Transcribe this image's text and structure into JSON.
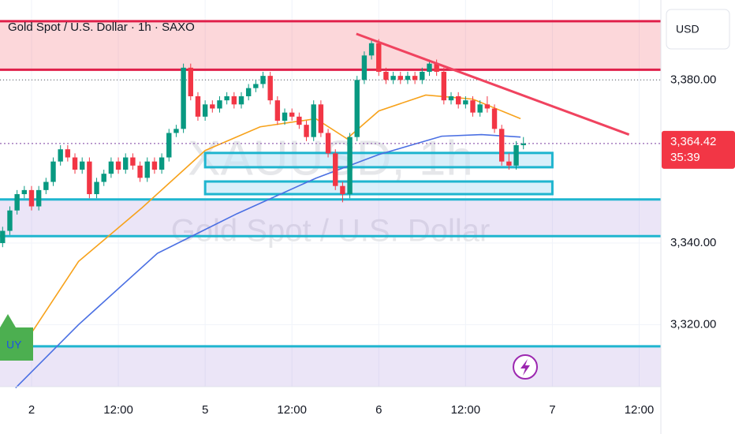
{
  "chart_data": {
    "type": "candlestick",
    "title": "Gold Spot / U.S. Dollar · 1h · SAXO",
    "currency": "USD",
    "watermark_symbol": "XAUUSD, 1h",
    "watermark_name": "Gold Spot / U.S. Dollar",
    "countdown": "35:39",
    "signal_label": "UY",
    "up_color": "#089981",
    "down_color": "#f23645",
    "grid": true,
    "xlim": [
      -4.36,
      87
    ],
    "ylim": [
      3304.8,
      3399.6
    ],
    "xticks": [
      {
        "value": 0,
        "label": "2"
      },
      {
        "value": 12,
        "label": "12:00"
      },
      {
        "value": 24,
        "label": "5"
      },
      {
        "value": 36,
        "label": "12:00"
      },
      {
        "value": 48,
        "label": "6"
      },
      {
        "value": 60,
        "label": "12:00"
      },
      {
        "value": 72,
        "label": "7"
      },
      {
        "value": 84,
        "label": "12:00"
      }
    ],
    "yticks": [
      {
        "value": 3380,
        "label": "3,380.00"
      },
      {
        "value": 3340,
        "label": "3,340.00"
      },
      {
        "value": 3320,
        "label": "3,320.00"
      }
    ],
    "x": [
      -4,
      -3,
      -2,
      -1,
      0,
      1,
      2,
      3,
      4,
      5,
      6,
      7,
      8,
      9,
      10,
      11,
      12,
      13,
      14,
      15,
      16,
      17,
      18,
      19,
      20,
      21,
      22,
      23,
      24,
      25,
      26,
      27,
      28,
      29,
      30,
      31,
      32,
      33,
      34,
      35,
      36,
      37,
      38,
      39,
      40,
      41,
      42,
      43,
      44,
      45,
      46,
      47,
      48,
      49,
      50,
      51,
      52,
      53,
      54,
      55,
      56,
      57,
      58,
      59,
      60,
      61,
      62,
      63,
      64,
      65,
      66,
      67,
      68
    ],
    "open": [
      3340,
      3343,
      3348,
      3352,
      3353,
      3349,
      3353,
      3355,
      3360,
      3363,
      3361,
      3358,
      3360,
      3352,
      3355,
      3357,
      3360,
      3358,
      3361,
      3359,
      3356,
      3360,
      3358,
      3361,
      3367,
      3368,
      3383,
      3376,
      3371,
      3374,
      3373,
      3375,
      3376,
      3374,
      3376,
      3378,
      3379,
      3381,
      3375,
      3370,
      3372,
      3371,
      3369,
      3366,
      3374,
      3367,
      3362,
      3354,
      3352,
      3366,
      3380,
      3386,
      3389,
      3382,
      3380,
      3381,
      3380,
      3381,
      3380,
      3382,
      3384,
      3382,
      3375,
      3376,
      3374,
      3375,
      3372,
      3374,
      3373,
      3368,
      3360,
      3359,
      3364
    ],
    "high": [
      3344,
      3349,
      3353,
      3354,
      3354,
      3354,
      3356,
      3361,
      3364,
      3364,
      3362,
      3361,
      3361,
      3356,
      3358,
      3361,
      3361,
      3362,
      3362,
      3360,
      3361,
      3361,
      3362,
      3368,
      3369,
      3384,
      3384,
      3377,
      3375,
      3375,
      3376,
      3377,
      3377,
      3377,
      3379,
      3380,
      3382,
      3382,
      3376,
      3373,
      3373,
      3372,
      3370,
      3375,
      3375,
      3368,
      3363,
      3355,
      3367,
      3381,
      3387,
      3390,
      3390,
      3383,
      3382,
      3382,
      3382,
      3382,
      3383,
      3385,
      3385,
      3383,
      3377,
      3377,
      3376,
      3376,
      3375,
      3376,
      3374,
      3369,
      3362,
      3365,
      3366
    ],
    "low": [
      3339,
      3342,
      3347,
      3351,
      3348,
      3348,
      3352,
      3354,
      3359,
      3360,
      3357,
      3357,
      3351,
      3351,
      3354,
      3356,
      3357,
      3357,
      3358,
      3355,
      3355,
      3357,
      3357,
      3360,
      3366,
      3367,
      3375,
      3370,
      3370,
      3372,
      3372,
      3374,
      3373,
      3373,
      3375,
      3377,
      3378,
      3374,
      3369,
      3369,
      3370,
      3368,
      3365,
      3365,
      3366,
      3361,
      3353,
      3350,
      3351,
      3365,
      3379,
      3385,
      3381,
      3379,
      3379,
      3379,
      3379,
      3379,
      3379,
      3381,
      3381,
      3374,
      3374,
      3373,
      3373,
      3371,
      3371,
      3372,
      3367,
      3359,
      3358,
      3358,
      3363
    ],
    "close": [
      3343,
      3348,
      3352,
      3353,
      3349,
      3353,
      3355,
      3360,
      3363,
      3361,
      3358,
      3360,
      3352,
      3355,
      3357,
      3360,
      3358,
      3361,
      3359,
      3356,
      3360,
      3358,
      3361,
      3367,
      3368,
      3383,
      3376,
      3371,
      3374,
      3373,
      3375,
      3376,
      3374,
      3376,
      3378,
      3379,
      3381,
      3375,
      3370,
      3372,
      3371,
      3369,
      3366,
      3374,
      3367,
      3362,
      3354,
      3352,
      3366,
      3380,
      3386,
      3389,
      3382,
      3380,
      3381,
      3380,
      3381,
      3380,
      3382,
      3384,
      3382,
      3375,
      3376,
      3374,
      3375,
      3372,
      3374,
      3373,
      3368,
      3360,
      3359,
      3364,
      3364.42
    ],
    "last_price": 3364.42,
    "last_price_label": "3,364.42",
    "moving_averages": [
      {
        "color": "#f7a21b",
        "x": [
          0,
          6.5,
          15.3,
          24,
          31.6,
          39.3,
          43.6,
          48,
          54.5,
          61,
          67.6
        ],
        "values": [
          3318,
          3335.5,
          3348.7,
          3362.7,
          3368.5,
          3370.5,
          3365.6,
          3372.4,
          3376.3,
          3375.3,
          3370.5
        ]
      },
      {
        "color": "#4a6fe3",
        "x": [
          -2.2,
          6.5,
          17.4,
          28.4,
          39.3,
          48,
          56.7,
          62.2,
          67.6
        ],
        "values": [
          3304.5,
          3320,
          3337.5,
          3347.2,
          3355.9,
          3361.7,
          3366.2,
          3366.6,
          3366
        ]
      }
    ],
    "zones": [
      {
        "low": 3382.5,
        "high": 3394.4,
        "color": "#f23645"
      },
      {
        "low": 3341.7,
        "high": 3350.7,
        "color": "#9c7fd6"
      },
      {
        "low": 3304.8,
        "high": 3314.7,
        "color": "#9c7fd6"
      }
    ],
    "levels": [
      {
        "value": 3394.4,
        "color": "#e0204a"
      },
      {
        "value": 3382.5,
        "color": "#e0204a"
      },
      {
        "value": 3350.7,
        "color": "#1fb5cf"
      },
      {
        "value": 3341.7,
        "color": "#1fb5cf"
      },
      {
        "value": 3314.7,
        "color": "#1fb5cf"
      }
    ],
    "boxes": [
      {
        "x": [
          24,
          72
        ],
        "y": [
          3358.6,
          3362.1
        ]
      },
      {
        "x": [
          24,
          72
        ],
        "y": [
          3352,
          3355.1
        ]
      }
    ],
    "trendline": {
      "x": [
        44.9,
        82.6
      ],
      "values": [
        3391.3,
        3366.6
      ],
      "color": "#f0435f"
    }
  }
}
